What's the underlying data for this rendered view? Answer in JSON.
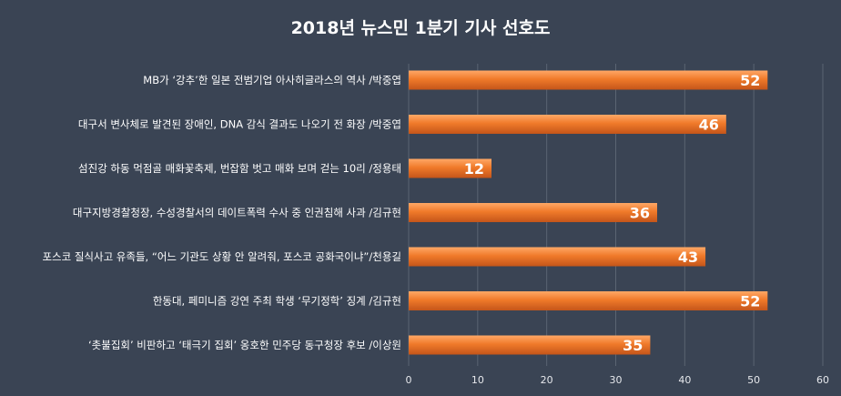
{
  "chart_data": {
    "type": "bar",
    "orientation": "horizontal",
    "title": "2018년 뉴스민 1분기 기사 선호도",
    "categories": [
      "MB가 ‘강추’한 일본 전범기업 아사히글라스의 역사 /박중엽",
      "대구서 변사체로 발견된 장애인, DNA 감식 결과도 나오기 전 화장 /박중엽",
      "섬진강 하동 먹점골 매화꽃축제, 번잡함 벗고 매화 보며 걷는 10리 /정용태",
      "대구지방경찰청장, 수성경찰서의 데이트폭력 수사 중 인권침해 사과 /김규현",
      "포스코 질식사고 유족들, “어느 기관도 상황 안 알려줘, 포스코 공화국이냐”/천용길",
      "한동대, 페미니즘 강연 주최 학생 ‘무기정학’ 징계 /김규현",
      "‘촛불집회’ 비판하고 ‘태극기 집회’ 옹호한 민주당 동구청장 후보 /이상원"
    ],
    "values": [
      52,
      46,
      12,
      36,
      43,
      52,
      35
    ],
    "xlim": [
      0,
      60
    ],
    "xticks": [
      "0",
      "10",
      "20",
      "30",
      "40",
      "50",
      "60"
    ],
    "grid": true,
    "colors": {
      "background": "#3a4454",
      "bar": "#f07a2a",
      "bar_highlight": "#ffa866",
      "bar_shadow": "#c4551a",
      "grid": "#5a6472"
    }
  }
}
